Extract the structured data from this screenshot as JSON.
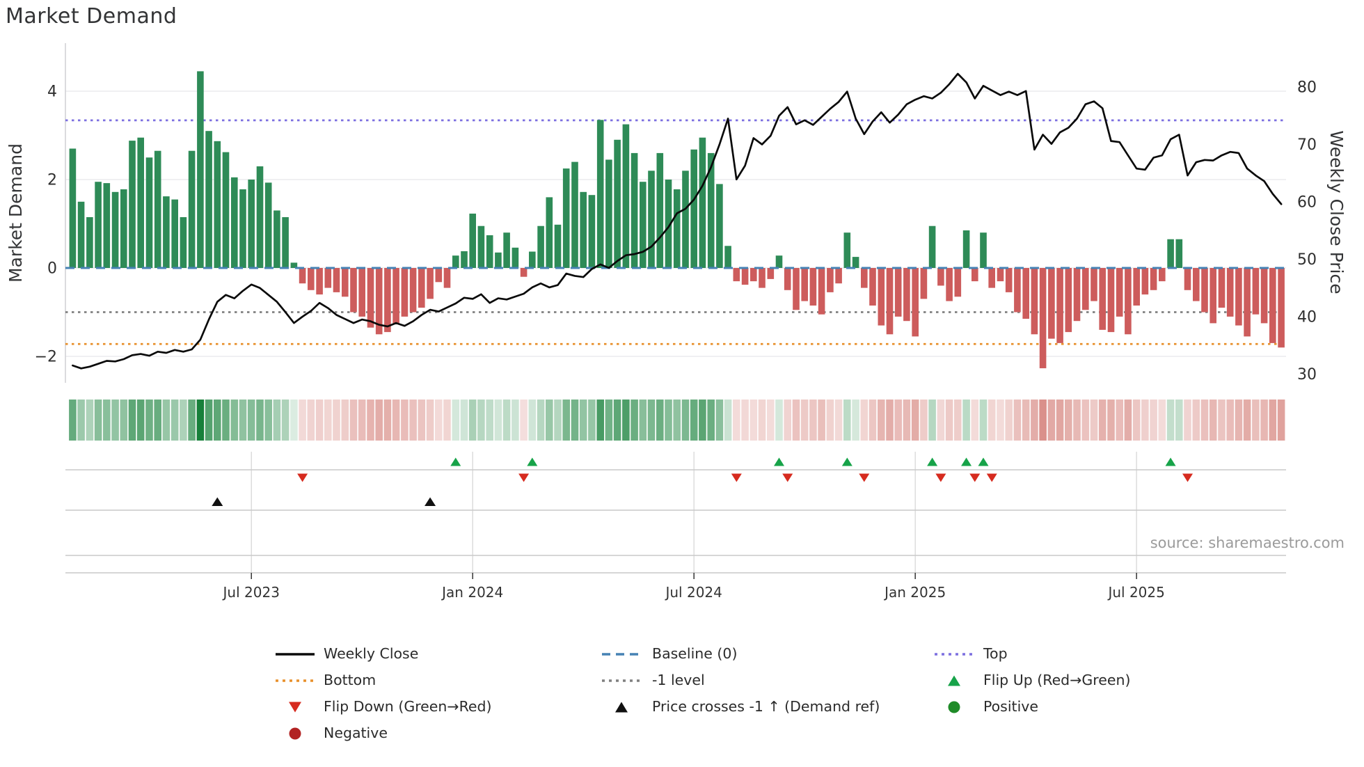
{
  "title": "Market Demand",
  "source": "source: sharemaestro.com",
  "axes": {
    "left_label": "Market Demand",
    "right_label": "Weekly Close Price",
    "left_ticks": [
      {
        "label": "4",
        "value": 4
      },
      {
        "label": "2",
        "value": 2
      },
      {
        "label": "0",
        "value": 0
      },
      {
        "label": "−2",
        "value": -2
      }
    ],
    "right_ticks": [
      {
        "label": "80",
        "value": 80
      },
      {
        "label": "70",
        "value": 70
      },
      {
        "label": "60",
        "value": 60
      },
      {
        "label": "50",
        "value": 50
      },
      {
        "label": "40",
        "value": 40
      },
      {
        "label": "30",
        "value": 30
      }
    ],
    "x_ticks": [
      {
        "label": "Jul 2023",
        "week": 21
      },
      {
        "label": "Jan 2024",
        "week": 47
      },
      {
        "label": "Jul 2024",
        "week": 73
      },
      {
        "label": "Jan 2025",
        "week": 99
      },
      {
        "label": "Jul 2025",
        "week": 125
      }
    ]
  },
  "chart_data": {
    "type": "combo",
    "x_unit": "week",
    "start_date": "2023-02-05",
    "n_weeks": 143,
    "grid": "horizontal",
    "legend_position": "bottom",
    "ylim_left": [
      -2.6,
      5.1
    ],
    "ylim_right": [
      28.5,
      87.6
    ],
    "series": [
      {
        "name": "Market Demand",
        "type": "bar",
        "axis": "left",
        "values": [
          2.7,
          1.5,
          1.15,
          1.95,
          1.92,
          1.72,
          1.78,
          2.88,
          2.95,
          2.5,
          2.65,
          1.62,
          1.55,
          1.15,
          2.65,
          4.45,
          3.1,
          2.87,
          2.62,
          2.05,
          1.78,
          2.0,
          2.3,
          1.93,
          1.3,
          1.15,
          0.12,
          -0.35,
          -0.5,
          -0.6,
          -0.45,
          -0.55,
          -0.65,
          -1.0,
          -1.1,
          -1.35,
          -1.5,
          -1.45,
          -1.25,
          -1.1,
          -1.0,
          -0.9,
          -0.7,
          -0.32,
          -0.45,
          0.28,
          0.38,
          1.23,
          0.95,
          0.74,
          0.35,
          0.8,
          0.46,
          -0.2,
          0.37,
          0.95,
          1.6,
          0.98,
          2.25,
          2.4,
          1.72,
          1.65,
          3.35,
          2.45,
          2.9,
          3.25,
          2.6,
          1.95,
          2.2,
          2.6,
          2.0,
          1.78,
          2.2,
          2.68,
          2.95,
          2.6,
          1.9,
          0.5,
          -0.3,
          -0.38,
          -0.3,
          -0.45,
          -0.25,
          0.28,
          -0.5,
          -0.95,
          -0.75,
          -0.85,
          -1.05,
          -0.55,
          -0.35,
          0.8,
          0.25,
          -0.45,
          -0.85,
          -1.3,
          -1.5,
          -1.1,
          -1.2,
          -1.55,
          -0.7,
          0.95,
          -0.4,
          -0.75,
          -0.65,
          0.85,
          -0.3,
          0.8,
          -0.45,
          -0.3,
          -0.55,
          -1.0,
          -1.15,
          -1.5,
          -2.27,
          -1.6,
          -1.7,
          -1.45,
          -1.2,
          -0.95,
          -0.75,
          -1.4,
          -1.45,
          -1.1,
          -1.5,
          -0.85,
          -0.6,
          -0.5,
          -0.3,
          0.65,
          0.65,
          -0.5,
          -0.75,
          -1.0,
          -1.25,
          -0.9,
          -1.1,
          -1.3,
          -1.55,
          -1.05,
          -1.25,
          -1.7,
          -1.8
        ]
      },
      {
        "name": "Weekly Close",
        "type": "line",
        "axis": "right",
        "values": [
          31.5,
          31.0,
          31.3,
          31.8,
          32.3,
          32.2,
          32.6,
          33.3,
          33.5,
          33.2,
          33.9,
          33.7,
          34.2,
          33.9,
          34.3,
          36.0,
          39.5,
          42.6,
          43.8,
          43.2,
          44.5,
          45.6,
          45.0,
          43.8,
          42.6,
          40.8,
          38.9,
          40.0,
          41.0,
          42.4,
          41.5,
          40.3,
          39.6,
          38.9,
          39.5,
          39.2,
          38.6,
          38.3,
          38.9,
          38.4,
          39.2,
          40.3,
          41.2,
          40.9,
          41.6,
          42.3,
          43.3,
          43.1,
          43.9,
          42.4,
          43.2,
          43.0,
          43.5,
          44.0,
          45.1,
          45.8,
          45.1,
          45.5,
          47.5,
          47.1,
          46.9,
          48.3,
          49.1,
          48.5,
          49.7,
          50.7,
          50.9,
          51.3,
          52.2,
          53.8,
          55.6,
          58.0,
          58.8,
          60.4,
          62.8,
          66.0,
          70.0,
          74.5,
          63.9,
          66.3,
          71.1,
          70.0,
          71.5,
          75.0,
          76.5,
          73.5,
          74.2,
          73.4,
          74.8,
          76.2,
          77.4,
          79.2,
          74.5,
          71.8,
          74.0,
          75.6,
          73.8,
          75.2,
          77.0,
          77.8,
          78.4,
          78.0,
          79.0,
          80.5,
          82.3,
          80.8,
          78.0,
          80.2,
          79.4,
          78.6,
          79.2,
          78.6,
          79.3,
          69.1,
          71.7,
          70.1,
          72.1,
          72.9,
          74.5,
          77.0,
          77.5,
          76.3,
          70.6,
          70.4,
          68.1,
          65.8,
          65.6,
          67.7,
          68.1,
          70.9,
          71.7,
          64.6,
          66.9,
          67.3,
          67.2,
          68.1,
          68.7,
          68.5,
          65.8,
          64.6,
          63.6,
          61.4,
          59.6
        ]
      }
    ],
    "reference_lines": [
      {
        "name": "Baseline (0)",
        "value": 0,
        "style": "dashed",
        "color": "#4682b4"
      },
      {
        "name": "Top",
        "value": 3.34,
        "style": "dotted",
        "color": "#7d70e0"
      },
      {
        "name": "Bottom",
        "value": -1.72,
        "style": "dotted",
        "color": "#e8912d"
      },
      {
        "name": "-1 level",
        "value": -1,
        "style": "dotted",
        "color": "#808080"
      }
    ],
    "markers": {
      "flip_up_weeks": [
        45,
        54,
        83,
        91,
        101,
        105,
        107,
        129
      ],
      "flip_down_weeks": [
        27,
        53,
        78,
        84,
        93,
        102,
        106,
        108,
        131
      ],
      "price_cross_weeks": [
        17,
        42
      ]
    }
  },
  "colors": {
    "bar_positive": "#2e8b57",
    "bar_negative": "#cd5c5c",
    "price_line": "#0a0a0a",
    "baseline": "#4682b4",
    "top": "#7d70e0",
    "bottom": "#e8912d",
    "minus_one": "#808080",
    "flip_up": "#17a349",
    "flip_down": "#d62b1f",
    "price_cross": "#111111",
    "positive_dot": "#1f8b28",
    "negative_dot": "#b22222",
    "heat_positive": "#168039",
    "heat_negative": "#be3e34",
    "grid": "#e6e6e9",
    "panel_line": "#c9c9c9",
    "panel_grid": "#dadada"
  },
  "legend": {
    "columns": [
      [
        {
          "label": "Weekly Close",
          "marker": "line-solid",
          "color": "#0a0a0a"
        },
        {
          "label": "Bottom",
          "marker": "line-dotted",
          "color": "#e8912d"
        },
        {
          "label": "Flip Down (Green→Red)",
          "marker": "triangle-down",
          "color": "#d62b1f"
        },
        {
          "label": "Negative",
          "marker": "circle",
          "color": "#b22222"
        }
      ],
      [
        {
          "label": "Baseline (0)",
          "marker": "line-dashed",
          "color": "#4682b4"
        },
        {
          "label": "-1 level",
          "marker": "line-dotted",
          "color": "#808080"
        },
        {
          "label": "Price crosses -1 ↑ (Demand ref)",
          "marker": "triangle-up",
          "color": "#111111"
        }
      ],
      [
        {
          "label": "Top",
          "marker": "line-dotted",
          "color": "#7d70e0"
        },
        {
          "label": "Flip Up (Red→Green)",
          "marker": "triangle-up",
          "color": "#17a349"
        },
        {
          "label": "Positive",
          "marker": "circle",
          "color": "#1f8b28"
        }
      ]
    ]
  }
}
